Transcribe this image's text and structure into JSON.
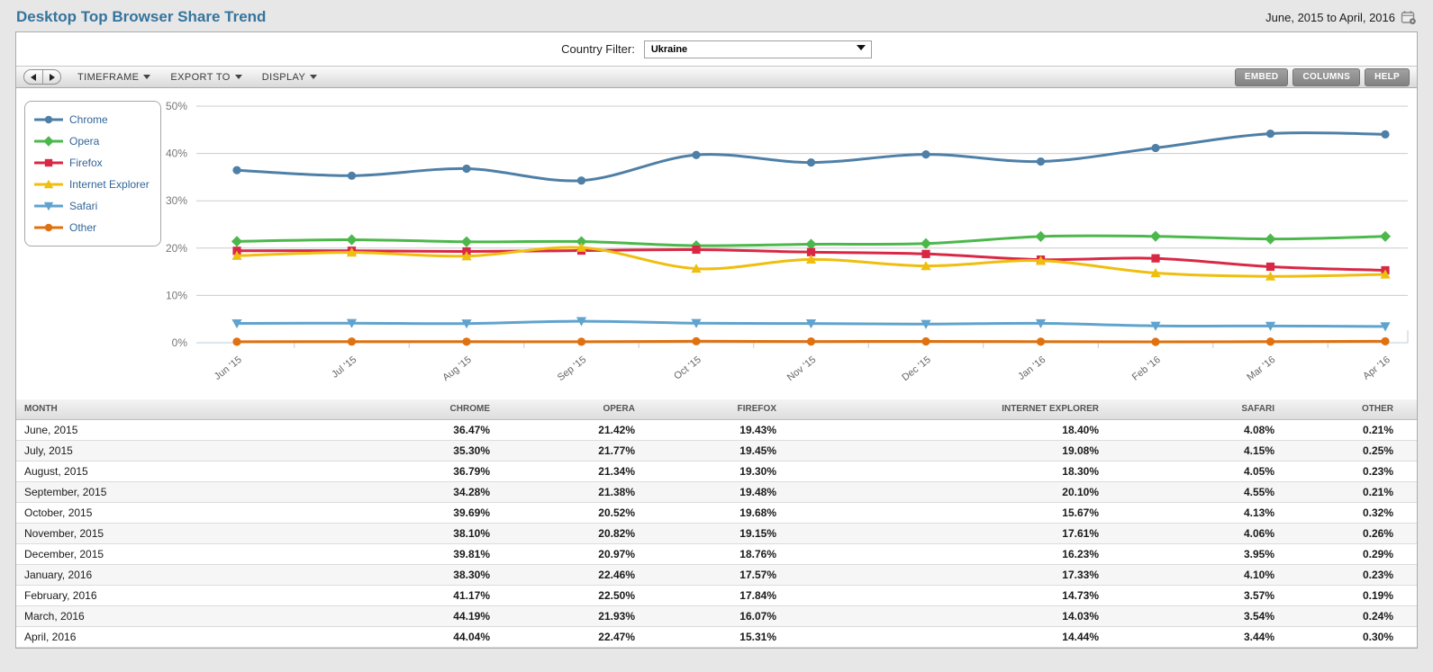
{
  "header": {
    "title": "Desktop Top Browser Share Trend",
    "date_range": "June, 2015 to April, 2016"
  },
  "filter": {
    "label": "Country Filter:",
    "selected": "Ukraine"
  },
  "toolbar": {
    "menus": [
      "TIMEFRAME",
      "EXPORT TO",
      "DISPLAY"
    ],
    "buttons": [
      "EMBED",
      "COLUMNS",
      "HELP"
    ]
  },
  "chart_data": {
    "type": "line",
    "x": [
      "Jun '15",
      "Jul '15",
      "Aug '15",
      "Sep '15",
      "Oct '15",
      "Nov '15",
      "Dec '15",
      "Jan '16",
      "Feb '16",
      "Mar '16",
      "Apr '16"
    ],
    "series": [
      {
        "name": "Chrome",
        "color": "#4E7FA7",
        "marker": "circle",
        "values": [
          36.47,
          35.3,
          36.79,
          34.28,
          39.69,
          38.1,
          39.81,
          38.3,
          41.17,
          44.19,
          44.04
        ]
      },
      {
        "name": "Opera",
        "color": "#4CB84C",
        "marker": "diamond",
        "values": [
          21.42,
          21.77,
          21.34,
          21.38,
          20.52,
          20.82,
          20.97,
          22.46,
          22.5,
          21.93,
          22.47
        ]
      },
      {
        "name": "Firefox",
        "color": "#D92845",
        "marker": "square",
        "values": [
          19.43,
          19.45,
          19.3,
          19.48,
          19.68,
          19.15,
          18.76,
          17.57,
          17.84,
          16.07,
          15.31
        ]
      },
      {
        "name": "Internet Explorer",
        "color": "#EFBE0E",
        "marker": "triangle-up",
        "values": [
          18.4,
          19.08,
          18.3,
          20.1,
          15.67,
          17.61,
          16.23,
          17.33,
          14.73,
          14.03,
          14.44
        ]
      },
      {
        "name": "Safari",
        "color": "#60A3CE",
        "marker": "triangle-down",
        "values": [
          4.08,
          4.15,
          4.05,
          4.55,
          4.13,
          4.06,
          3.95,
          4.1,
          3.57,
          3.54,
          3.44
        ]
      },
      {
        "name": "Other",
        "color": "#E1700F",
        "marker": "circle",
        "values": [
          0.21,
          0.25,
          0.23,
          0.21,
          0.32,
          0.26,
          0.29,
          0.23,
          0.19,
          0.24,
          0.3
        ]
      }
    ],
    "ylim": [
      0,
      50
    ],
    "yticks": [
      "0%",
      "10%",
      "20%",
      "30%",
      "40%",
      "50%"
    ],
    "grid": true,
    "legend_position": "top-left"
  },
  "table": {
    "columns": [
      "MONTH",
      "CHROME",
      "OPERA",
      "FIREFOX",
      "INTERNET EXPLORER",
      "SAFARI",
      "OTHER"
    ],
    "rows": [
      [
        "June, 2015",
        "36.47%",
        "21.42%",
        "19.43%",
        "18.40%",
        "4.08%",
        "0.21%"
      ],
      [
        "July, 2015",
        "35.30%",
        "21.77%",
        "19.45%",
        "19.08%",
        "4.15%",
        "0.25%"
      ],
      [
        "August, 2015",
        "36.79%",
        "21.34%",
        "19.30%",
        "18.30%",
        "4.05%",
        "0.23%"
      ],
      [
        "September, 2015",
        "34.28%",
        "21.38%",
        "19.48%",
        "20.10%",
        "4.55%",
        "0.21%"
      ],
      [
        "October, 2015",
        "39.69%",
        "20.52%",
        "19.68%",
        "15.67%",
        "4.13%",
        "0.32%"
      ],
      [
        "November, 2015",
        "38.10%",
        "20.82%",
        "19.15%",
        "17.61%",
        "4.06%",
        "0.26%"
      ],
      [
        "December, 2015",
        "39.81%",
        "20.97%",
        "18.76%",
        "16.23%",
        "3.95%",
        "0.29%"
      ],
      [
        "January, 2016",
        "38.30%",
        "22.46%",
        "17.57%",
        "17.33%",
        "4.10%",
        "0.23%"
      ],
      [
        "February, 2016",
        "41.17%",
        "22.50%",
        "17.84%",
        "14.73%",
        "3.57%",
        "0.19%"
      ],
      [
        "March, 2016",
        "44.19%",
        "21.93%",
        "16.07%",
        "14.03%",
        "3.54%",
        "0.24%"
      ],
      [
        "April, 2016",
        "44.04%",
        "22.47%",
        "15.31%",
        "14.44%",
        "3.44%",
        "0.30%"
      ]
    ]
  }
}
